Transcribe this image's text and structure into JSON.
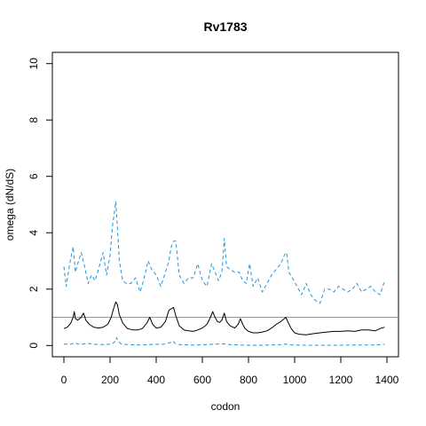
{
  "chart_data": {
    "type": "line",
    "title": "Rv1783",
    "xlabel": "codon",
    "ylabel": "omega (dN/dS)",
    "xlim": [
      -50,
      1450
    ],
    "ylim": [
      -0.4,
      10.4
    ],
    "x_ticks": [
      0,
      200,
      400,
      600,
      800,
      1000,
      1200,
      1400
    ],
    "y_ticks": [
      0,
      2,
      4,
      6,
      8,
      10
    ],
    "reference_line": {
      "y": 1,
      "color": "#cc79a7"
    },
    "grid": false,
    "series": [
      {
        "style": "dashed",
        "color": "#1f96d8",
        "x": [
          0,
          10,
          25,
          40,
          50,
          60,
          75,
          90,
          105,
          120,
          135,
          150,
          170,
          185,
          200,
          210,
          220,
          225,
          232,
          240,
          255,
          270,
          290,
          310,
          330,
          345,
          365,
          380,
          400,
          420,
          440,
          455,
          465,
          475,
          485,
          500,
          520,
          540,
          560,
          580,
          600,
          620,
          640,
          655,
          670,
          685,
          695,
          705,
          720,
          740,
          760,
          775,
          790,
          805,
          820,
          840,
          860,
          880,
          900,
          920,
          940,
          955,
          965,
          975,
          990,
          1010,
          1030,
          1050,
          1070,
          1090,
          1110,
          1130,
          1150,
          1170,
          1190,
          1210,
          1230,
          1250,
          1270,
          1290,
          1310,
          1330,
          1350,
          1370,
          1390
        ],
        "values": [
          2.8,
          2.1,
          2.9,
          3.5,
          2.6,
          2.9,
          3.3,
          2.8,
          2.2,
          2.5,
          2.3,
          2.7,
          3.3,
          2.5,
          3.2,
          4.2,
          4.8,
          5.1,
          4.2,
          3.0,
          2.3,
          2.2,
          2.2,
          2.4,
          1.9,
          2.3,
          3.0,
          2.7,
          2.5,
          2.1,
          2.6,
          3.0,
          3.5,
          3.7,
          3.7,
          2.5,
          2.2,
          2.4,
          2.4,
          2.9,
          2.3,
          2.1,
          2.9,
          2.6,
          2.3,
          2.6,
          3.8,
          2.8,
          2.7,
          2.6,
          2.6,
          2.3,
          2.2,
          2.9,
          2.1,
          2.4,
          1.9,
          2.2,
          2.5,
          2.7,
          2.9,
          3.2,
          3.3,
          2.6,
          2.4,
          2.1,
          1.8,
          2.2,
          1.8,
          1.6,
          1.5,
          2.0,
          2.0,
          1.9,
          2.1,
          2.0,
          1.9,
          2.0,
          2.2,
          1.9,
          2.0,
          2.1,
          1.9,
          1.8,
          2.3
        ]
      },
      {
        "style": "solid",
        "color": "#000000",
        "x": [
          0,
          15,
          30,
          40,
          45,
          50,
          60,
          75,
          85,
          95,
          110,
          130,
          150,
          170,
          190,
          205,
          215,
          225,
          232,
          240,
          255,
          275,
          300,
          320,
          340,
          360,
          372,
          385,
          400,
          420,
          440,
          455,
          465,
          475,
          485,
          500,
          520,
          540,
          560,
          580,
          600,
          620,
          635,
          645,
          655,
          665,
          675,
          685,
          695,
          705,
          720,
          740,
          755,
          765,
          775,
          785,
          800,
          820,
          840,
          860,
          880,
          900,
          920,
          940,
          955,
          962,
          970,
          985,
          1000,
          1020,
          1050,
          1080,
          1110,
          1140,
          1170,
          1200,
          1230,
          1260,
          1290,
          1320,
          1350,
          1370,
          1390
        ],
        "values": [
          0.6,
          0.65,
          0.8,
          1.0,
          1.2,
          0.95,
          0.9,
          1.0,
          1.15,
          0.9,
          0.75,
          0.65,
          0.62,
          0.65,
          0.75,
          1.0,
          1.3,
          1.55,
          1.45,
          1.1,
          0.8,
          0.6,
          0.55,
          0.55,
          0.6,
          0.8,
          1.0,
          0.75,
          0.62,
          0.65,
          0.85,
          1.25,
          1.3,
          1.35,
          1.05,
          0.7,
          0.55,
          0.52,
          0.5,
          0.55,
          0.62,
          0.75,
          1.0,
          1.2,
          1.0,
          0.85,
          0.82,
          0.9,
          1.15,
          0.85,
          0.7,
          0.62,
          0.75,
          0.95,
          0.75,
          0.6,
          0.5,
          0.45,
          0.45,
          0.48,
          0.52,
          0.62,
          0.75,
          0.85,
          0.95,
          1.0,
          0.85,
          0.6,
          0.45,
          0.4,
          0.38,
          0.42,
          0.45,
          0.48,
          0.5,
          0.5,
          0.52,
          0.5,
          0.55,
          0.55,
          0.52,
          0.6,
          0.65
        ]
      },
      {
        "style": "dashed",
        "color": "#1f96d8",
        "x": [
          0,
          30,
          45,
          50,
          60,
          80,
          100,
          130,
          160,
          190,
          210,
          222,
          228,
          235,
          250,
          280,
          320,
          360,
          400,
          440,
          465,
          475,
          480,
          500,
          540,
          580,
          620,
          660,
          690,
          700,
          720,
          760,
          800,
          850,
          900,
          940,
          960,
          990,
          1050,
          1100,
          1150,
          1200,
          1250,
          1300,
          1350,
          1390
        ],
        "values": [
          0.05,
          0.05,
          0.08,
          0.1,
          0.05,
          0.05,
          0.08,
          0.04,
          0.03,
          0.04,
          0.06,
          0.15,
          0.28,
          0.14,
          0.05,
          0.03,
          0.02,
          0.03,
          0.04,
          0.05,
          0.12,
          0.15,
          0.08,
          0.03,
          0.02,
          0.02,
          0.03,
          0.05,
          0.06,
          0.05,
          0.03,
          0.02,
          0.01,
          0.01,
          0.02,
          0.03,
          0.05,
          0.02,
          0.01,
          0.01,
          0.01,
          0.01,
          0.02,
          0.02,
          0.02,
          0.04
        ]
      }
    ]
  }
}
